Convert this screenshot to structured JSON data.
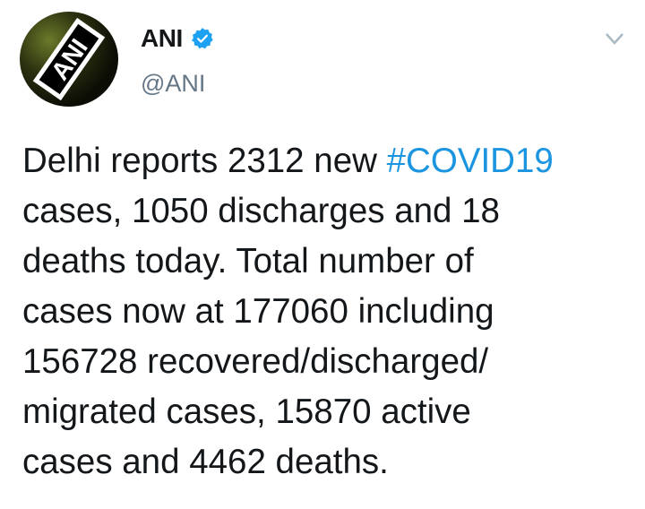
{
  "tweet": {
    "author_name": "ANI",
    "verified": true,
    "handle": "@ANI",
    "avatar_text": "ANI",
    "text_lines": [
      "Delhi reports 2312 new ",
      "cases, 1050 discharges and 18",
      "deaths today. Total number of",
      "cases now at 177060 including",
      "156728 recovered/discharged/",
      "migrated cases, 15870 active",
      "cases and 4462 deaths."
    ],
    "hashtag": "#COVID19"
  },
  "colors": {
    "hashtag": "#1b95e0",
    "verified": "#1da1f2",
    "handle": "#657786"
  },
  "icons": {
    "verified": "verified-badge-icon",
    "menu": "chevron-down-icon"
  }
}
